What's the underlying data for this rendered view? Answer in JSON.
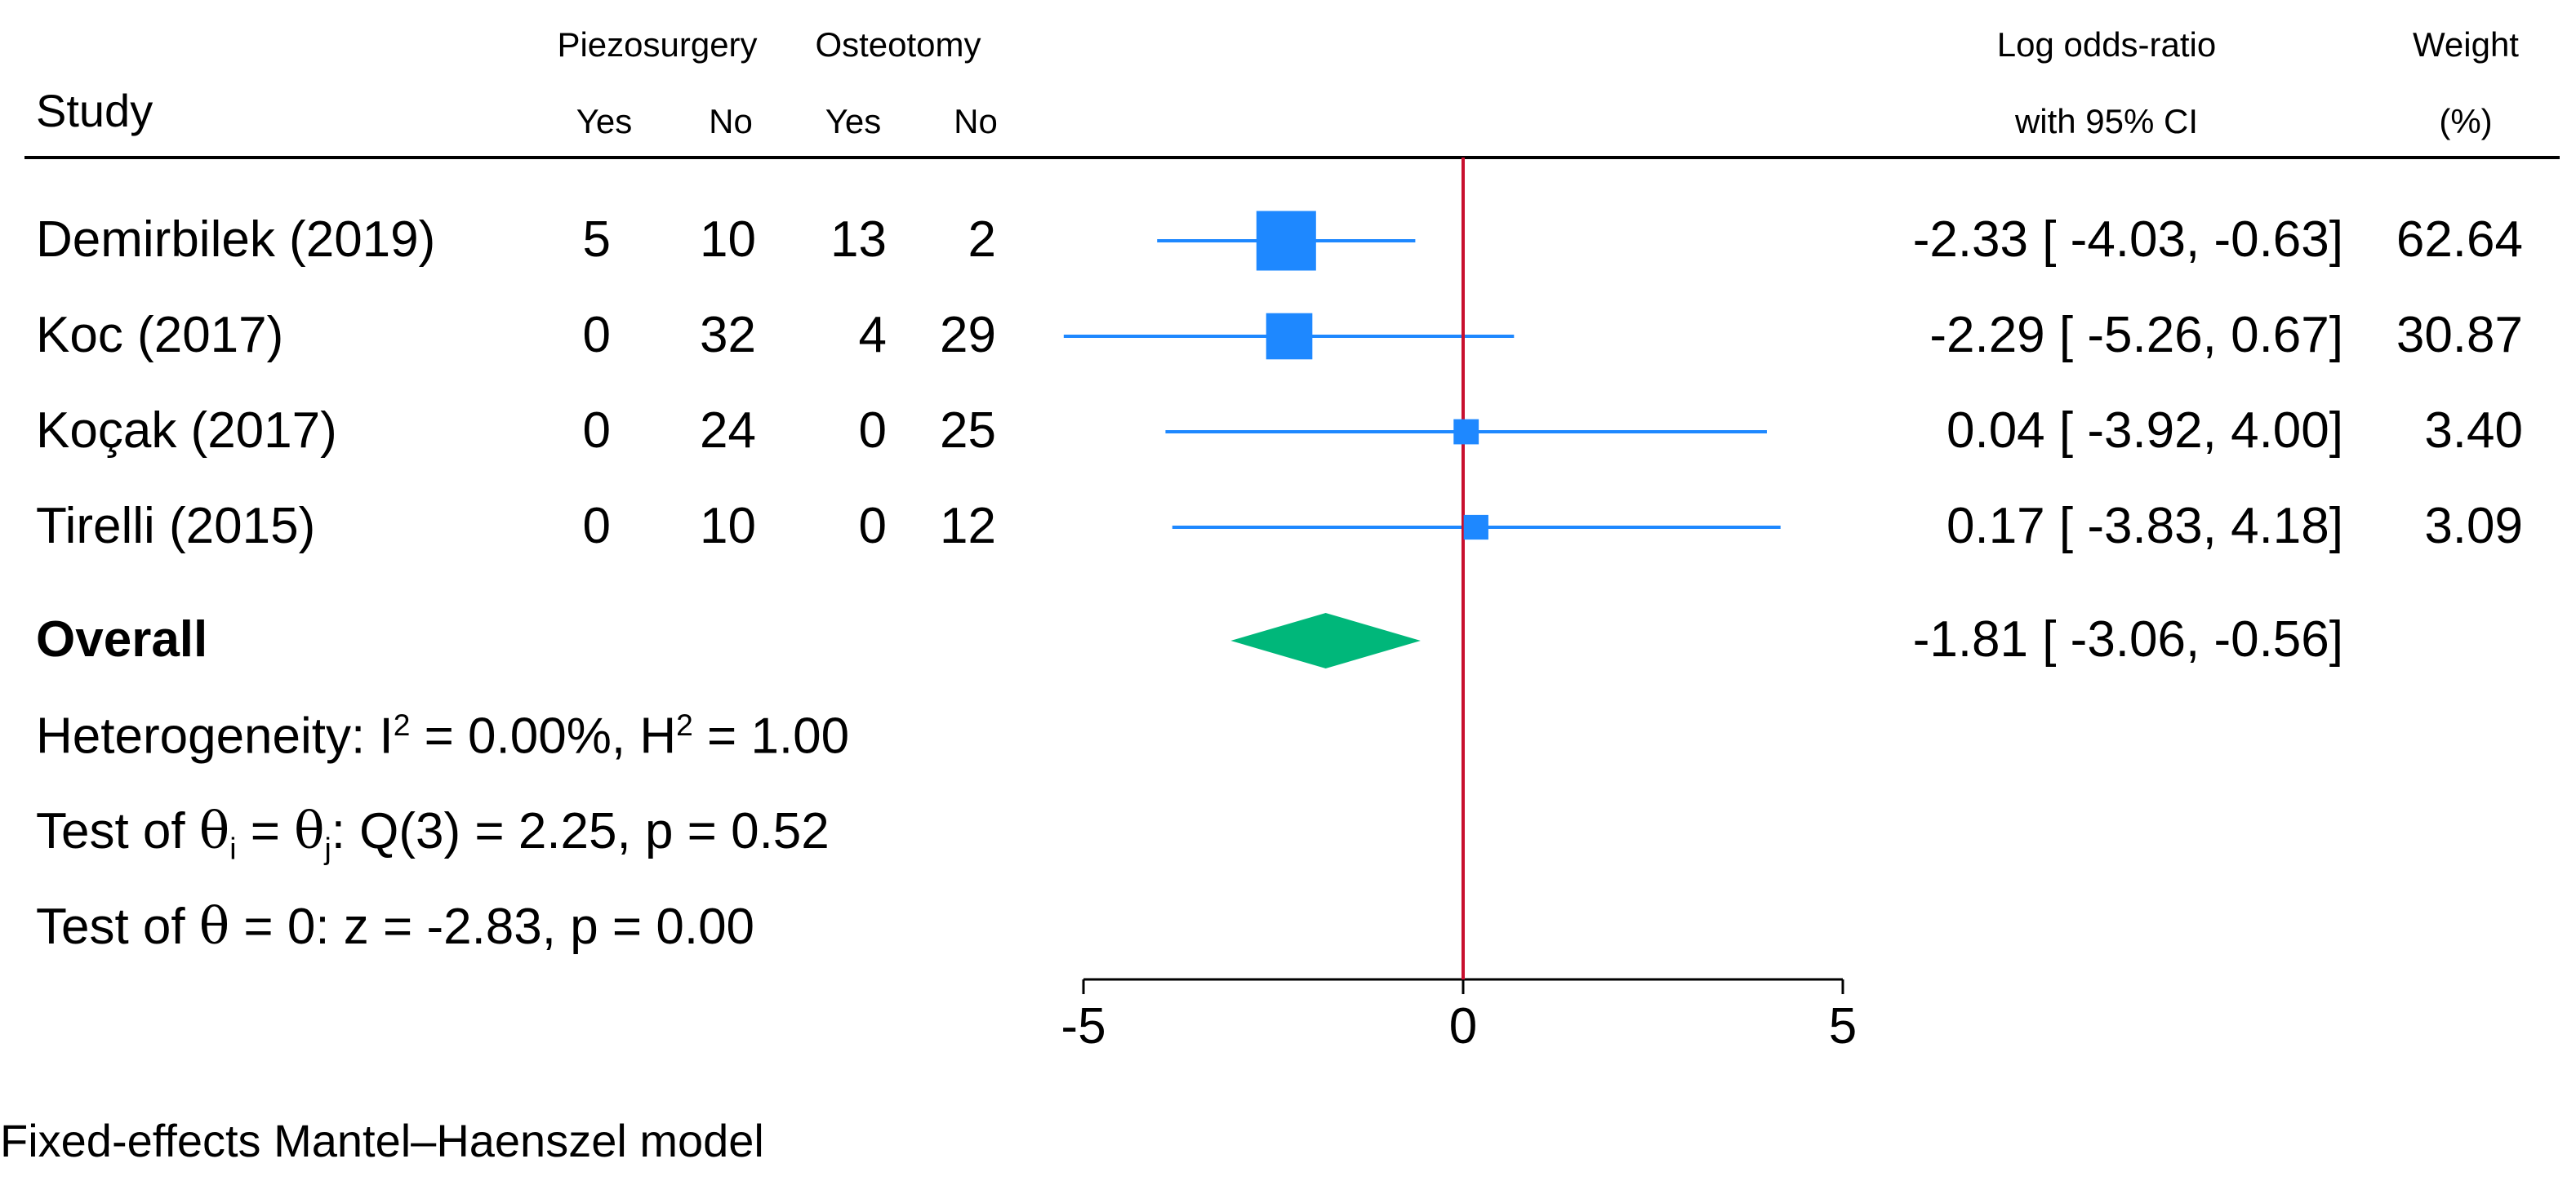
{
  "headers": {
    "study": "Study",
    "group_a": "Piezosurgery",
    "group_b": "Osteotomy",
    "yes": "Yes",
    "no": "No",
    "effect_line1": "Log odds-ratio",
    "effect_line2": "with 95% CI",
    "weight_line1": "Weight",
    "weight_line2": "(%)"
  },
  "chart_data": {
    "type": "forest",
    "xlabel": "Log odds-ratio",
    "xlim": [
      -5,
      5
    ],
    "xticks": [
      -5,
      0,
      5
    ],
    "null_value": 0,
    "colors": {
      "study_marker": "#1e88ff",
      "overall_diamond": "#00b77a",
      "null_line": "#c8102e"
    },
    "studies": [
      {
        "name": "Demirbilek (2019)",
        "a_yes": "5",
        "a_no": "10",
        "b_yes": "13",
        "b_no": "2",
        "estimate": -2.33,
        "lower": -4.03,
        "upper": -0.63,
        "weight": 62.64,
        "ci_text": "-2.33 [ -4.03,  -0.63]",
        "weight_text": "62.64"
      },
      {
        "name": "Koc (2017)",
        "a_yes": "0",
        "a_no": "32",
        "b_yes": "4",
        "b_no": "29",
        "estimate": -2.29,
        "lower": -5.26,
        "upper": 0.67,
        "weight": 30.87,
        "ci_text": "-2.29 [ -5.26,   0.67]",
        "weight_text": "30.87"
      },
      {
        "name": "Koçak (2017)",
        "a_yes": "0",
        "a_no": "24",
        "b_yes": "0",
        "b_no": "25",
        "estimate": 0.04,
        "lower": -3.92,
        "upper": 4.0,
        "weight": 3.4,
        "ci_text": "0.04 [ -3.92,   4.00]",
        "weight_text": "3.40"
      },
      {
        "name": "Tirelli (2015)",
        "a_yes": "0",
        "a_no": "10",
        "b_yes": "0",
        "b_no": "12",
        "estimate": 0.17,
        "lower": -3.83,
        "upper": 4.18,
        "weight": 3.09,
        "ci_text": "0.17 [ -3.83,   4.18]",
        "weight_text": "3.09"
      }
    ],
    "overall": {
      "label": "Overall",
      "estimate": -1.81,
      "lower": -3.06,
      "upper": -0.56,
      "ci_text": "-1.81 [ -3.06,  -0.56]"
    }
  },
  "stats": {
    "heterogeneity": {
      "prefix": "Heterogeneity: ",
      "i_symbol": "I",
      "exponent": "2",
      "middle": " = 0.00%, ",
      "h_symbol": "H",
      "suffix": " = 1.00"
    },
    "q_test": {
      "prefix": "Test of ",
      "theta": "θ",
      "sub_i": "i",
      "equals": " = ",
      "sub_j": "j",
      "suffix": ": Q(3) = 2.25, p = 0.52"
    },
    "z_test": {
      "prefix": "Test of ",
      "theta": "θ",
      "suffix": " = 0: z = -2.83, p = 0.00"
    }
  },
  "footnote": "Fixed-effects Mantel–Haenszel model"
}
